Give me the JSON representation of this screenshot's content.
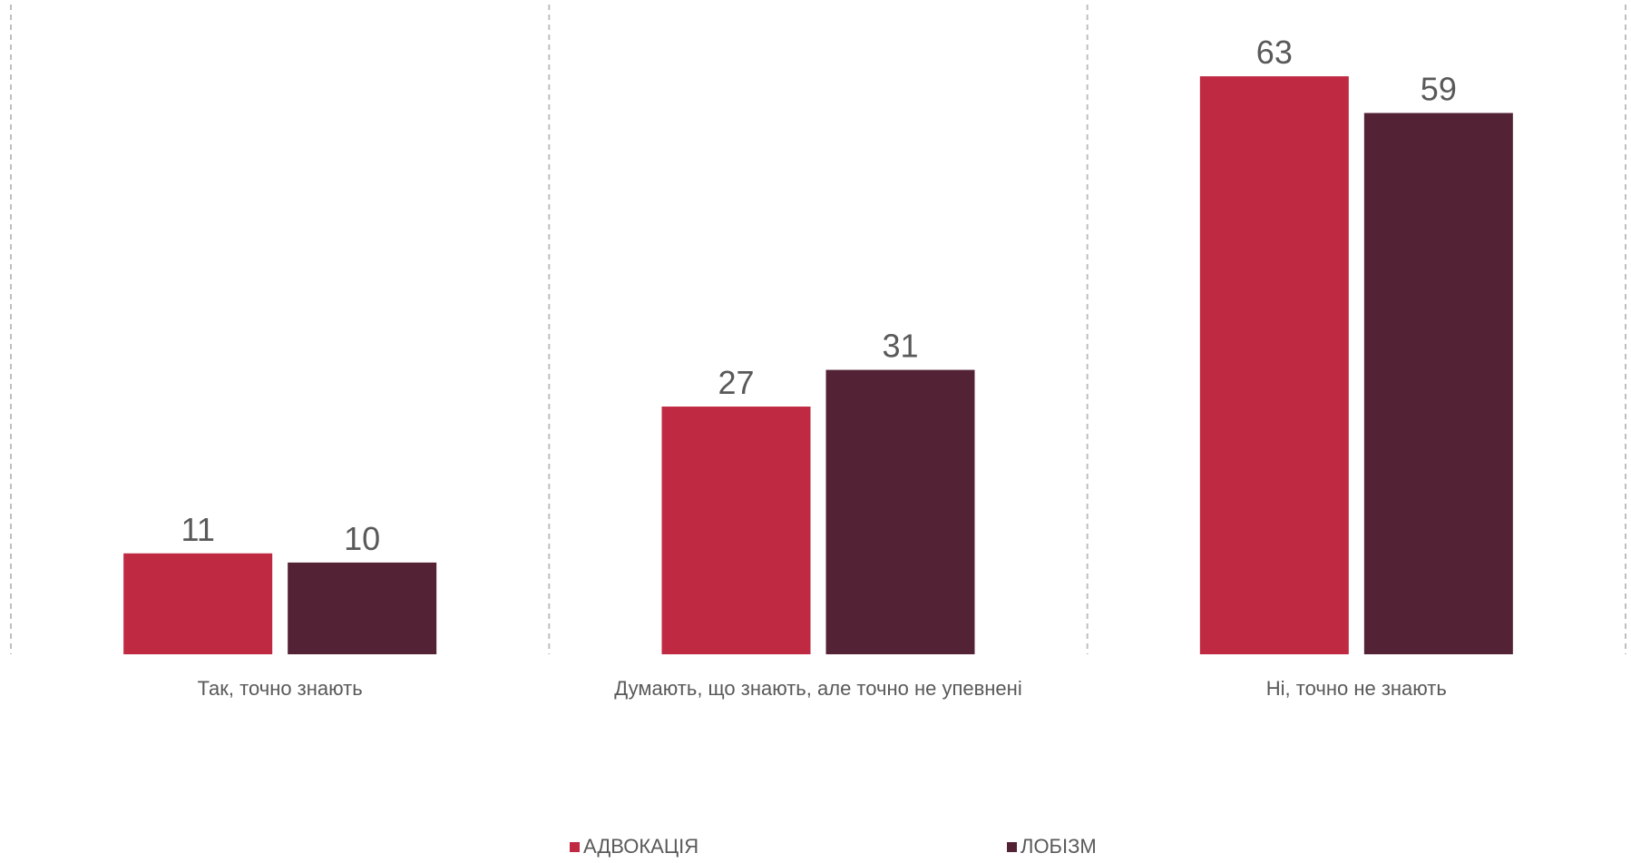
{
  "chart_data": {
    "type": "bar",
    "categories": [
      "Так, точно знають",
      "Думають, що знають, але точно не упевнені",
      "Ні, точно не знають"
    ],
    "series": [
      {
        "name": "АДВОКАЦІЯ",
        "values": [
          11,
          27,
          63
        ],
        "color": "#C02942"
      },
      {
        "name": "ЛОБІЗМ",
        "values": [
          10,
          31,
          59
        ],
        "color": "#532335"
      }
    ],
    "ylim": [
      0,
      65
    ],
    "grid": false,
    "category_separators": true,
    "legend_position": "bottom"
  }
}
